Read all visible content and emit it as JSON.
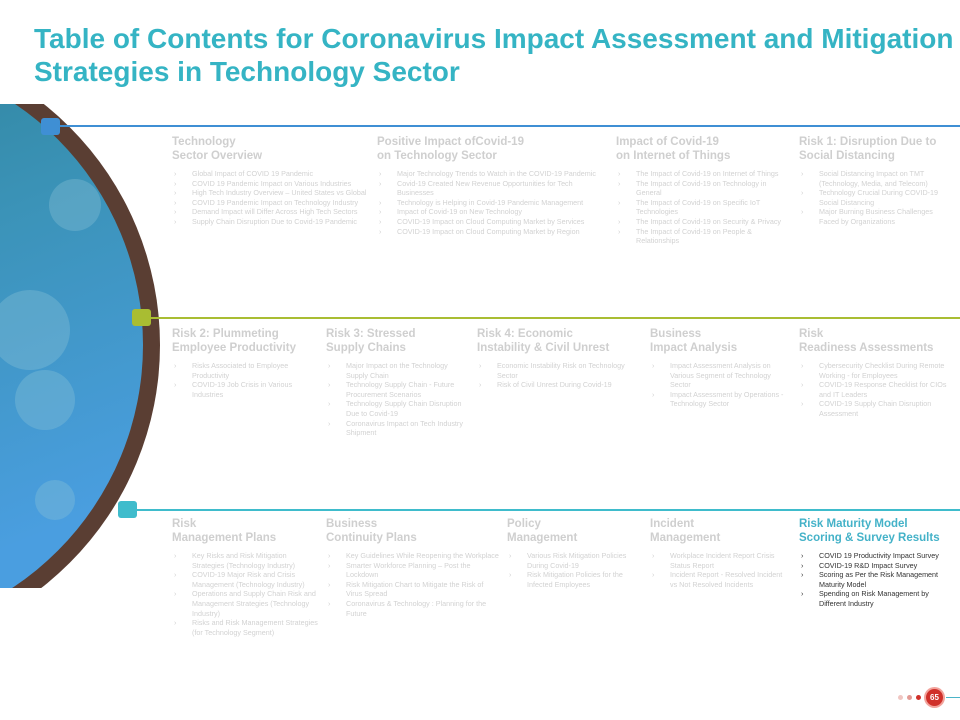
{
  "title": "Table of Contents for Coronavirus Impact Assessment and Mitigation Strategies in Technology Sector",
  "colors": {
    "title": "#35b4c4",
    "row1": "#3f8fd4",
    "row2": "#a9bd32",
    "row3": "#3fbccc",
    "ring": "#5a3e33"
  },
  "rows": [
    {
      "sections": [
        {
          "title": "Technology\nSector Overview",
          "items": [
            "Global Impact of COVID 19 Pandemic",
            "COVID 19 Pandemic Impact on Various Industries",
            "High Tech Industry Overview – United States vs Global",
            "COVID 19 Pandemic Impact on Technology Industry",
            "Demand Impact will Differ Across High Tech Sectors",
            "Supply Chain Disruption Due to Covid-19 Pandemic"
          ]
        },
        {
          "title": "Positive Impact ofCovid-19\non Technology Sector",
          "items": [
            "Major Technology Trends to Watch in the COVID-19 Pandemic",
            "Covid-19 Created New Revenue Opportunities for Tech Businesses",
            "Technology is Helping in Covid-19 Pandemic Management",
            "Impact of Covid-19 on New Technology",
            "COVID-19 Impact on Cloud Computing Market by Services",
            "COVID-19 Impact on Cloud Computing Market by Region"
          ]
        },
        {
          "title": "Impact of Covid-19\non Internet of Things",
          "items": [
            "The Impact of Covid-19 on Internet of Things",
            "The Impact of Covid-19 on Technology in General",
            "The Impact of Covid-19 on Specific IoT Technologies",
            "The Impact of Covid-19 on Security & Privacy",
            "The Impact of Covid-19 on People & Relationships"
          ]
        },
        {
          "title": "Risk 1: Disruption Due to\nSocial Distancing",
          "items": [
            "Social Distancing Impact on TMT (Technology, Media, and Telecom)",
            "Technology Crucial During COVID-19 Social Distancing",
            "Major Burning Business Challenges Faced by Organizations"
          ]
        }
      ]
    },
    {
      "sections": [
        {
          "title": "Risk 2: Plummeting\nEmployee Productivity",
          "items": [
            "Risks Associated to Employee Productivity",
            "COVID-19 Job Crisis in Various Industries"
          ]
        },
        {
          "title": "Risk 3: Stressed\nSupply Chains",
          "items": [
            "Major Impact on the Technology Supply Chain",
            "Technology Supply Chain - Future Procurement Scenarios",
            "Technology Supply Chain Disruption Due to Covid-19",
            "Coronavirus Impact on Tech Industry Shipment"
          ]
        },
        {
          "title": "Risk 4: Economic\nInstability & Civil Unrest",
          "items": [
            "Economic Instability Risk on Technology Sector",
            "Risk of Civil Unrest During Covid-19"
          ]
        },
        {
          "title": "Business\nImpact Analysis",
          "items": [
            "Impact Assessment Analysis on Various Segment of Technology Sector",
            "Impact Assessment by Operations - Technology Sector"
          ]
        },
        {
          "title": "Risk\nReadiness Assessments",
          "items": [
            "Cybersecurity Checklist During Remote Working - for Employees",
            "COVID-19 Response Checklist for CIOs and IT Leaders",
            "COVID-19 Supply Chain Disruption Assessment"
          ]
        }
      ]
    },
    {
      "sections": [
        {
          "title": "Risk\nManagement Plans",
          "items": [
            "Key Risks and Risk Mitigation Strategies (Technology Industry)",
            "COVID-19 Major Risk and Crisis Management (Technology Industry)",
            "Operations and Supply Chain Risk and Management Strategies (Technology Industry)",
            "Risks and Risk Management Strategies (for Technology Segment)"
          ]
        },
        {
          "title": "Business\nContinuity Plans",
          "items": [
            "Key Guidelines While Reopening the Workplace",
            "Smarter Workforce Planning – Post the Lockdown",
            "Risk Mitigation Chart to Mitigate the Risk of Virus Spread",
            "Coronavirus & Technology : Planning for the Future"
          ]
        },
        {
          "title": "Policy\nManagement",
          "items": [
            "Various Risk Mitigation Policies During Covid-19",
            "Risk Mitigation Policies for the Infected Employees"
          ]
        },
        {
          "title": "Incident\nManagement",
          "items": [
            "Workplace Incident Report Crisis Status Report",
            "Incident Report - Resolved Incident vs Not Resolved Incidents"
          ]
        },
        {
          "title": "Risk Maturity Model\nScoring & Survey Results",
          "active": true,
          "items": [
            "COVID 19 Productivity Impact Survey",
            "COVID-19 R&D Impact Survey",
            "Scoring as Per the Risk Management Maturity Model",
            "Spending on Risk Management by Different Industry"
          ]
        }
      ]
    }
  ],
  "page_number": "65"
}
